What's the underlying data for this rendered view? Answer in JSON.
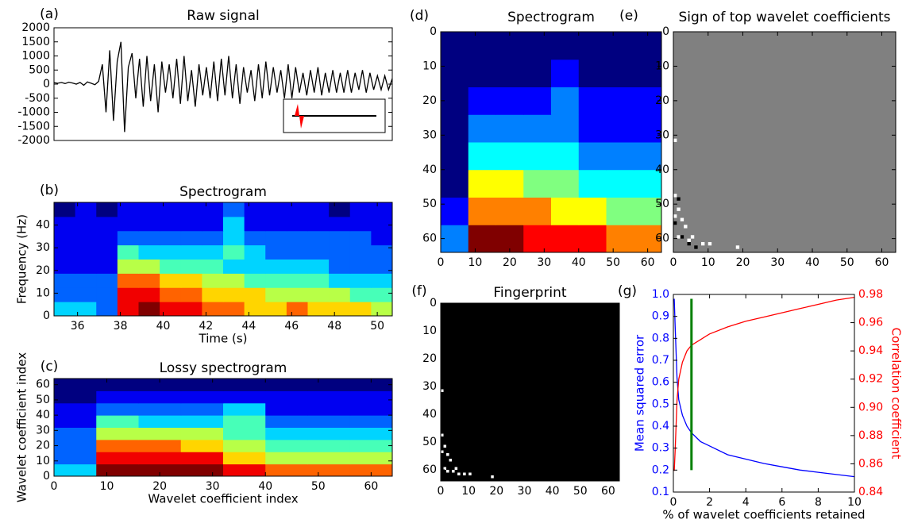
{
  "chart_data": [
    {
      "type": "line",
      "panel_label": "(a)",
      "title": "Raw signal",
      "color": "#000000",
      "values": [
        50,
        30,
        60,
        20,
        70,
        40,
        0,
        60,
        -40,
        80,
        30,
        -20,
        100,
        700,
        -1000,
        1200,
        -1300,
        800,
        1500,
        -1700,
        600,
        1100,
        -500,
        900,
        -800,
        1000,
        -600,
        700,
        -1000,
        800,
        -300,
        700,
        -500,
        900,
        -700,
        1000,
        -600,
        500,
        -800,
        700,
        -400,
        600,
        -500,
        800,
        -600,
        900,
        -400,
        1000,
        -500,
        700,
        -700,
        600,
        -300,
        500,
        -600,
        700,
        -500,
        800,
        -400,
        600,
        -300,
        500,
        -500,
        700,
        -500,
        600,
        -300,
        400,
        -400,
        500,
        -300,
        600,
        -400,
        400,
        -300,
        500,
        -300,
        400,
        -300,
        500,
        -300,
        400,
        -200,
        500,
        -300,
        400,
        -200,
        300,
        -200,
        300,
        -200,
        200
      ],
      "ylim": [
        -2000,
        2000
      ],
      "yticks": [
        -2000,
        -1500,
        -1000,
        -500,
        0,
        500,
        1000,
        1500,
        2000
      ]
    },
    {
      "type": "heatmap",
      "panel_label": "(b)",
      "title": "Spectrogram",
      "xlabel": "Time (s)",
      "ylabel": "Frequency (Hz)",
      "xlim": [
        34.9,
        50.7
      ],
      "ylim": [
        0,
        50
      ],
      "xticks": [
        36,
        38,
        40,
        42,
        44,
        46,
        48,
        50
      ],
      "yticks": [
        0,
        10,
        20,
        30,
        40
      ],
      "matrix": [
        [
          4,
          4,
          3,
          9,
          10,
          9,
          9,
          8,
          8,
          7,
          7,
          8,
          7,
          7,
          7,
          6
        ],
        [
          3,
          3,
          3,
          9,
          9,
          8,
          8,
          7,
          7,
          7,
          6,
          6,
          6,
          6,
          5,
          5
        ],
        [
          3,
          3,
          3,
          8,
          8,
          7,
          7,
          6,
          6,
          5,
          5,
          5,
          5,
          4,
          4,
          4
        ],
        [
          2,
          2,
          2,
          6,
          6,
          5,
          5,
          5,
          4,
          4,
          4,
          4,
          4,
          3,
          3,
          3
        ],
        [
          2,
          2,
          2,
          5,
          4,
          4,
          4,
          4,
          5,
          4,
          3,
          3,
          3,
          3,
          3,
          3
        ],
        [
          2,
          2,
          2,
          3,
          3,
          3,
          3,
          3,
          4,
          3,
          3,
          3,
          3,
          3,
          3,
          2
        ],
        [
          2,
          2,
          2,
          2,
          2,
          2,
          2,
          2,
          4,
          2,
          2,
          2,
          2,
          2,
          2,
          2
        ],
        [
          1,
          2,
          1,
          2,
          2,
          2,
          2,
          2,
          3,
          2,
          2,
          2,
          2,
          1,
          2,
          2
        ]
      ]
    },
    {
      "type": "heatmap",
      "panel_label": "(c)",
      "title": "Lossy spectrogram",
      "xlabel": "Wavelet coefficient index",
      "ylabel": "Wavelet coefficient index",
      "xlim": [
        0,
        64
      ],
      "ylim": [
        0,
        64
      ],
      "xticks": [
        0,
        10,
        20,
        30,
        40,
        50,
        60
      ],
      "yticks": [
        0,
        10,
        20,
        30,
        40,
        50,
        60
      ],
      "matrix": [
        [
          4,
          10,
          10,
          10,
          9,
          8,
          8,
          8
        ],
        [
          3,
          9,
          9,
          9,
          7,
          6,
          6,
          6
        ],
        [
          3,
          8,
          8,
          7,
          6,
          5,
          5,
          5
        ],
        [
          3,
          6,
          6,
          6,
          5,
          4,
          4,
          4
        ],
        [
          2,
          5,
          4,
          4,
          5,
          3,
          3,
          3
        ],
        [
          2,
          3,
          3,
          3,
          4,
          2,
          2,
          2
        ],
        [
          1,
          2,
          2,
          2,
          2,
          2,
          2,
          2
        ],
        [
          1,
          1,
          1,
          1,
          1,
          1,
          1,
          1
        ]
      ]
    },
    {
      "type": "heatmap",
      "panel_label": "(d)",
      "title": "Spectrogram",
      "xlim": [
        0,
        64
      ],
      "ylim": [
        64,
        0
      ],
      "xticks": [
        0,
        10,
        20,
        30,
        40,
        50,
        60
      ],
      "yticks": [
        0,
        10,
        20,
        30,
        40,
        50,
        60
      ],
      "matrix": [
        [
          4,
          10,
          10,
          9,
          9,
          9,
          8,
          8
        ],
        [
          3,
          8,
          8,
          8,
          7,
          7,
          6,
          6
        ],
        [
          2,
          7,
          7,
          6,
          6,
          5,
          5,
          5
        ],
        [
          2,
          5,
          5,
          5,
          5,
          4,
          4,
          4
        ],
        [
          2,
          4,
          4,
          4,
          4,
          3,
          3,
          3
        ],
        [
          2,
          3,
          3,
          3,
          4,
          3,
          3,
          3
        ],
        [
          2,
          2,
          2,
          2,
          3,
          2,
          2,
          2
        ],
        [
          2,
          2,
          2,
          2,
          2,
          2,
          2,
          2
        ]
      ]
    },
    {
      "type": "pixels",
      "panel_label": "(e)",
      "title": "Sign of top wavelet coefficients",
      "background": "#808080",
      "xlim": [
        0,
        64
      ],
      "ylim": [
        64,
        0
      ],
      "xticks": [
        0,
        10,
        20,
        30,
        40,
        50,
        60
      ],
      "yticks": [
        0,
        10,
        20,
        30,
        40,
        50,
        60
      ],
      "white_pixels": {
        "x": [
          0,
          0,
          1,
          2,
          3,
          5,
          8,
          10,
          1,
          18,
          0,
          4
        ],
        "y": [
          31,
          47,
          51,
          54,
          56,
          59,
          61,
          61,
          59,
          62,
          53,
          60
        ]
      },
      "black_pixels": {
        "x": [
          1,
          0,
          2,
          4,
          6
        ],
        "y": [
          48,
          55,
          59,
          61,
          62
        ]
      }
    },
    {
      "type": "pixels",
      "panel_label": "(f)",
      "title": "Fingerprint",
      "background": "#000000",
      "xlim": [
        0,
        64
      ],
      "ylim": [
        64,
        0
      ],
      "xticks": [
        0,
        10,
        20,
        30,
        40,
        50,
        60
      ],
      "yticks": [
        0,
        10,
        20,
        30,
        40,
        50,
        60
      ],
      "white_pixels": {
        "x": [
          0,
          0,
          1,
          2,
          3,
          5,
          8,
          10,
          1,
          18,
          0,
          4,
          2,
          6
        ],
        "y": [
          31,
          47,
          51,
          54,
          56,
          59,
          61,
          61,
          59,
          62,
          53,
          60,
          60,
          61
        ]
      }
    },
    {
      "type": "line",
      "panel_label": "(g)",
      "xlabel": "% of wavelet coefficients retained",
      "ylabel": "Mean squared error",
      "y2label": "Correlation coefficient",
      "x": [
        0.05,
        0.1,
        0.2,
        0.3,
        0.5,
        0.75,
        1,
        1.5,
        2,
        3,
        4,
        5,
        6,
        7,
        8,
        9,
        10
      ],
      "series": [
        {
          "color": "#0000ff",
          "values": [
            0.98,
            0.85,
            0.62,
            0.52,
            0.45,
            0.4,
            0.37,
            0.33,
            0.31,
            0.27,
            0.25,
            0.23,
            0.215,
            0.2,
            0.19,
            0.18,
            0.17
          ]
        },
        {
          "color": "#ff0000",
          "axis": "y2",
          "values": [
            0.855,
            0.87,
            0.905,
            0.92,
            0.932,
            0.94,
            0.944,
            0.948,
            0.952,
            0.957,
            0.961,
            0.964,
            0.967,
            0.97,
            0.973,
            0.976,
            0.978
          ]
        }
      ],
      "vline": {
        "x": 1,
        "ymin": 0.2,
        "ymax": 0.98,
        "color": "#008000"
      },
      "xlim": [
        0,
        10
      ],
      "ylim": [
        0.1,
        1.0
      ],
      "y2lim": [
        0.84,
        0.98
      ],
      "xticks": [
        0,
        2,
        4,
        6,
        8,
        10
      ],
      "yticks": [
        0.1,
        0.2,
        0.3,
        0.4,
        0.5,
        0.6,
        0.7,
        0.8,
        0.9,
        {
          "value": 1.0,
          "label": "1.0"
        }
      ],
      "y2ticks": [
        0.84,
        0.86,
        0.88,
        {
          "value": 0.9,
          "label": "0.90"
        },
        0.92,
        0.94,
        0.96,
        0.98
      ]
    }
  ]
}
